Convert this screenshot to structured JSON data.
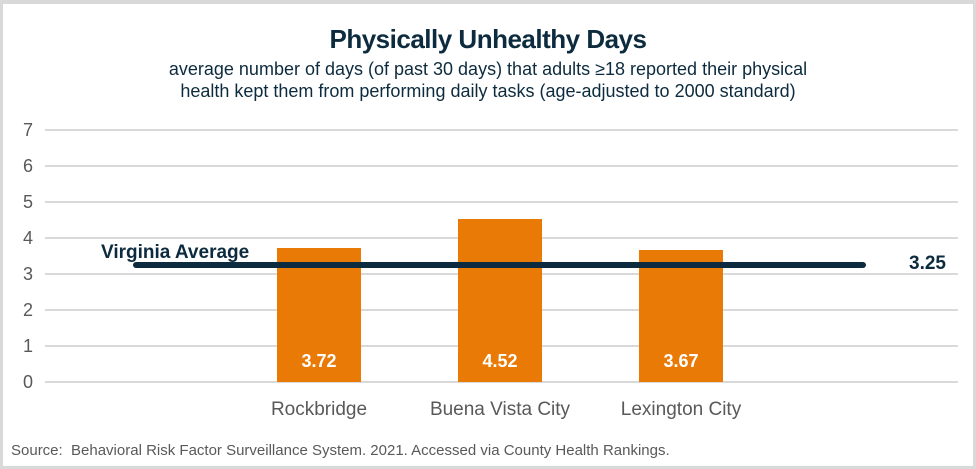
{
  "header": {
    "title": "Physically Unhealthy Days",
    "subtitle_line1": "average number of days (of past 30 days) that adults ≥18 reported their physical",
    "subtitle_line2": "health kept them from performing daily tasks (age-adjusted to 2000 standard)"
  },
  "chart_data": {
    "type": "bar",
    "title": "Physically Unhealthy Days",
    "subtitle": "average number of days (of past 30 days) that adults ≥18 reported their physical health kept them from performing daily tasks (age-adjusted to 2000 standard)",
    "categories": [
      "Rockbridge",
      "Buena Vista City",
      "Lexington City"
    ],
    "values": [
      3.72,
      4.52,
      3.67
    ],
    "value_labels": [
      "3.72",
      "4.52",
      "3.67"
    ],
    "ylim": [
      0,
      7
    ],
    "ytick_step": 1,
    "yticks": [
      0,
      1,
      2,
      3,
      4,
      5,
      6,
      7
    ],
    "grid": true,
    "legend": "none",
    "reference_line": {
      "label": "Virginia Average",
      "value": 3.25,
      "value_label": "3.25"
    },
    "colors": {
      "bar": "#ea7a06",
      "reference_line": "#0d2b3e",
      "gridline": "#d9d9d9",
      "axis_text": "#595959",
      "title_text": "#0d2b3e"
    }
  },
  "footer": {
    "source": "Source:  Behavioral Risk Factor Surveillance System. 2021. Accessed via County Health Rankings."
  }
}
